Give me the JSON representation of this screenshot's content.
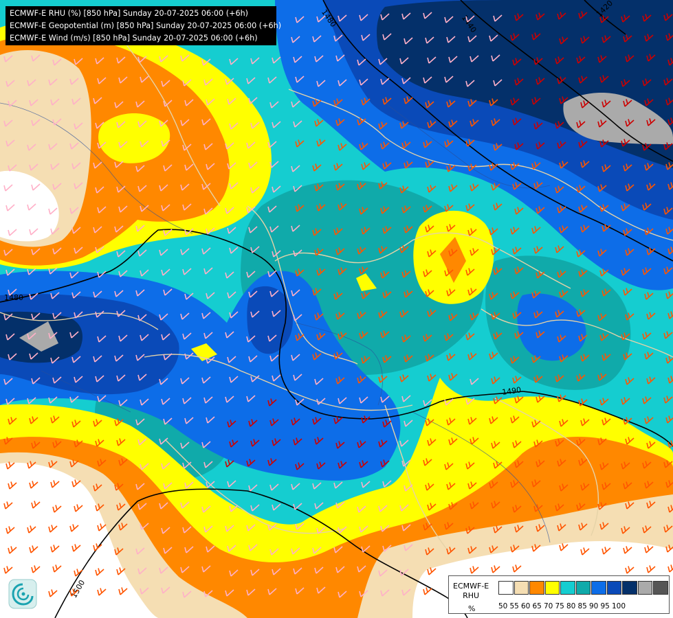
{
  "header": {
    "lines": [
      "ECMWF-E RHU (%) [850 hPa] Sunday 20-07-2025 06:00 (+6h)",
      "ECMWF-E Geopotential (m) [850 hPa] Sunday 20-07-2025 06:00 (+6h)",
      "ECMWF-E Wind (m/s) [850 hPa] Sunday 20-07-2025 06:00 (+6h)"
    ]
  },
  "legend": {
    "title": "ECMWF-E",
    "subtitle": "RHU",
    "unit": "%",
    "ticks": [
      "50",
      "55",
      "60",
      "65",
      "70",
      "75",
      "80",
      "85",
      "90",
      "95",
      "100"
    ],
    "colors": [
      "#ffffff",
      "#f5deb3",
      "#ff8800",
      "#ffff00",
      "#15cdd0",
      "#10aaaa",
      "#0d6de8",
      "#0a4ab8",
      "#04306a",
      "#aaaaaa",
      "#555555"
    ]
  },
  "contour_labels": [
    "1480",
    "1440",
    "1420",
    "1480",
    "1490",
    "1500"
  ],
  "colors": {
    "white": "#ffffff",
    "wheat": "#f5deb3",
    "orange": "#ff8800",
    "yellow": "#ffff00",
    "cyan": "#15cdd0",
    "teal": "#10aaaa",
    "blue": "#0d6de8",
    "darkblue": "#0a4ab8",
    "navy": "#04306a",
    "grey": "#aaaaaa",
    "barb_pink": "#ffb0c8",
    "barb_orange": "#ff5500",
    "barb_red": "#cc0000",
    "border": "#e6d3a8",
    "river": "#2a4f9a"
  }
}
